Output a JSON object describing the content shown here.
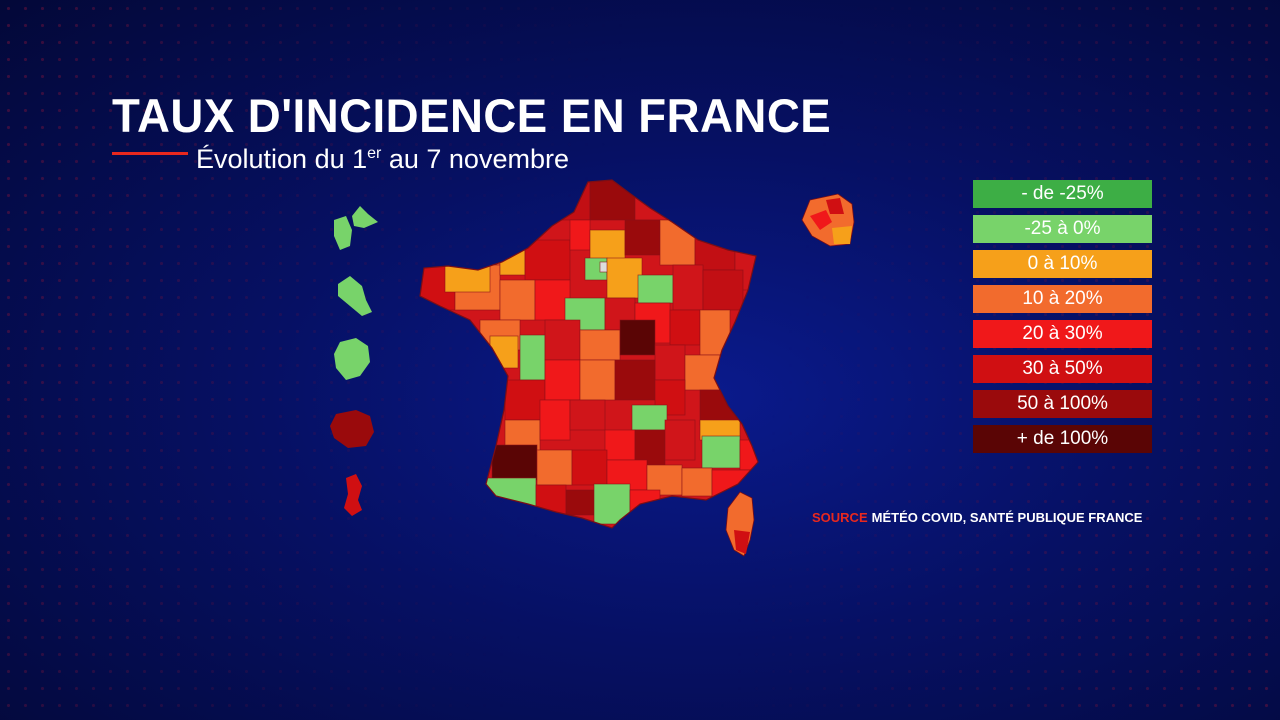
{
  "title": "TAUX D'INCIDENCE EN FRANCE",
  "subtitle": {
    "prefix": "Évolution du 1",
    "superscript": "er",
    "suffix": " au 7 novembre"
  },
  "legend": {
    "items": [
      {
        "label": "- de -25%",
        "color": "#3dae45"
      },
      {
        "label": "-25 à 0%",
        "color": "#78d36a"
      },
      {
        "label": "0 à 10%",
        "color": "#f6a01a"
      },
      {
        "label": "10 à 20%",
        "color": "#f26b2d"
      },
      {
        "label": "20 à 30%",
        "color": "#f0181a"
      },
      {
        "label": "30 à 50%",
        "color": "#d00f12"
      },
      {
        "label": "50 à 100%",
        "color": "#9a0a0c"
      },
      {
        "label": "+ de 100%",
        "color": "#5a0505"
      }
    ]
  },
  "source": {
    "label": "SOURCE",
    "text": "MÉTÉO COVID, SANTÉ PUBLIQUE FRANCE"
  },
  "map": {
    "region": "France (départements + outre-mer)",
    "territories": [
      "Guadeloupe",
      "Martinique",
      "Guyane",
      "La Réunion",
      "Mayotte",
      "Île-de-France (zoom)",
      "Corse"
    ]
  }
}
